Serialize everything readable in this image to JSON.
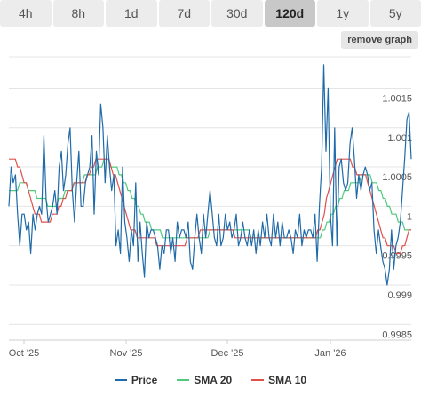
{
  "tabs": [
    {
      "label": "4h",
      "active": false
    },
    {
      "label": "8h",
      "active": false
    },
    {
      "label": "1d",
      "active": false
    },
    {
      "label": "7d",
      "active": false
    },
    {
      "label": "30d",
      "active": false
    },
    {
      "label": "120d",
      "active": true
    },
    {
      "label": "1y",
      "active": false
    },
    {
      "label": "5y",
      "active": false
    }
  ],
  "remove_graph_label": "remove graph",
  "colors": {
    "price": "#1f6aa8",
    "sma20": "#4fc97d",
    "sma10": "#e0504a",
    "grid": "#e4e4e4"
  },
  "chart_data": {
    "type": "line",
    "title": "",
    "xlabel": "",
    "ylabel": "",
    "x_ticks": [
      "Oct '25",
      "Nov '25",
      "Dec '25",
      "Jan '26"
    ],
    "y_ticks": [
      "0.9985",
      "0.999",
      "0.9995",
      "1",
      "1.0005",
      "1.001",
      "1.0015"
    ],
    "ylim": [
      0.9983,
      1.0019
    ],
    "grid": true,
    "legend_position": "bottom",
    "series": [
      {
        "name": "Price",
        "values": [
          1.0,
          1.0005,
          1.0003,
          1.0004,
          0.9999,
          0.9995,
          0.9999,
          0.9999,
          0.9997,
          0.9998,
          0.9994,
          0.9999,
          0.9997,
          0.9999,
          1.0,
          0.9999,
          1.0009,
          1.0001,
          0.9998,
          0.9999,
          1.0,
          1.0002,
          0.9999,
          1.0005,
          1.0007,
          1.0002,
          1.0004,
          1.0008,
          1.001,
          1.0002,
          0.9998,
          1.0003,
          1.0007,
          1.0,
          1.0,
          1.0003,
          1.0004,
          1.0005,
          1.0009,
          0.9999,
          1.0007,
          1.0004,
          1.0013,
          1.001,
          1.0003,
          1.0009,
          1.0005,
          1.0002,
          1.0004,
          0.9995,
          0.9997,
          0.9994,
          1.0005,
          0.9998,
          0.9996,
          0.9993,
          0.9997,
          0.9995,
          1.0003,
          0.9993,
          0.9998,
          0.9994,
          0.9991,
          0.9998,
          0.9996,
          0.9997,
          0.9997,
          0.9996,
          0.9995,
          0.9992,
          0.9995,
          0.9994,
          0.9997,
          0.9997,
          0.9994,
          0.9996,
          0.9993,
          0.9998,
          0.9996,
          0.9997,
          0.9997,
          0.9996,
          0.9998,
          0.9993,
          0.9992,
          0.9996,
          0.9999,
          0.9996,
          0.9994,
          0.9999,
          0.9996,
          0.9999,
          1.0002,
          0.9999,
          0.9996,
          0.9995,
          0.9999,
          0.9995,
          0.9996,
          0.9999,
          0.9997,
          0.9998,
          0.9996,
          0.9997,
          0.9999,
          0.9995,
          0.9996,
          0.9998,
          0.9996,
          0.9995,
          0.9997,
          0.9995,
          0.9997,
          0.9994,
          0.9997,
          0.9995,
          0.9998,
          0.9996,
          0.9999,
          0.9996,
          0.9995,
          0.9999,
          0.9996,
          0.9998,
          0.9995,
          0.9998,
          0.9996,
          0.9996,
          0.9997,
          0.9996,
          0.9994,
          0.9997,
          0.9996,
          0.9999,
          0.9995,
          0.9997,
          0.9996,
          0.9997,
          0.9997,
          0.9996,
          0.9999,
          0.9993,
          1.0,
          1.0005,
          1.0018,
          1.0007,
          1.0015,
          0.9999,
          0.9995,
          1.001,
          0.9995,
          1.0005,
          1.0006,
          1.0003,
          1.0002,
          1.0003,
          1.0008,
          1.001,
          1.0006,
          1.0001,
          1.0004,
          1.0002,
          1.0004,
          1.0005,
          1.0004,
          1.0002,
          1.0003,
          0.9997,
          0.9994,
          0.9997,
          0.9995,
          0.9993,
          0.9992,
          0.999,
          0.9992,
          0.9997,
          0.9992,
          0.9995,
          0.9996,
          0.9998,
          1.0002,
          1.0006,
          1.0011,
          1.0012,
          1.0006
        ]
      },
      {
        "name": "SMA 20",
        "values": [
          1.0002,
          1.0002,
          1.0002,
          1.0002,
          1.0002,
          1.0003,
          1.0003,
          1.0003,
          1.0003,
          1.0002,
          1.0002,
          1.0002,
          1.0002,
          1.0001,
          1.0001,
          1.0001,
          1.0001,
          1.0001,
          1.0,
          1.0,
          1.0,
          1.0,
          1.0,
          1.0001,
          1.0001,
          1.0001,
          1.0002,
          1.0002,
          1.0002,
          1.0002,
          1.0003,
          1.0003,
          1.0003,
          1.0003,
          1.0003,
          1.0004,
          1.0004,
          1.0004,
          1.0004,
          1.0004,
          1.0004,
          1.0005,
          1.0005,
          1.0005,
          1.0006,
          1.0006,
          1.0006,
          1.0005,
          1.0005,
          1.0005,
          1.0005,
          1.0004,
          1.0004,
          1.0003,
          1.0003,
          1.0002,
          1.0002,
          1.0001,
          1.0001,
          1.0,
          1.0,
          0.9999,
          0.9999,
          0.9998,
          0.9998,
          0.9998,
          0.9997,
          0.9997,
          0.9997,
          0.9997,
          0.9997,
          0.9996,
          0.9996,
          0.9996,
          0.9996,
          0.9996,
          0.9996,
          0.9996,
          0.9996,
          0.9996,
          0.9996,
          0.9996,
          0.9996,
          0.9996,
          0.9996,
          0.9996,
          0.9996,
          0.9996,
          0.9996,
          0.9996,
          0.9996,
          0.9996,
          0.9996,
          0.9997,
          0.9997,
          0.9997,
          0.9997,
          0.9997,
          0.9997,
          0.9997,
          0.9997,
          0.9997,
          0.9997,
          0.9997,
          0.9997,
          0.9997,
          0.9997,
          0.9997,
          0.9997,
          0.9997,
          0.9997,
          0.9997,
          0.9996,
          0.9996,
          0.9996,
          0.9996,
          0.9996,
          0.9996,
          0.9996,
          0.9996,
          0.9996,
          0.9996,
          0.9996,
          0.9996,
          0.9996,
          0.9996,
          0.9996,
          0.9996,
          0.9996,
          0.9996,
          0.9996,
          0.9996,
          0.9996,
          0.9996,
          0.9996,
          0.9996,
          0.9996,
          0.9996,
          0.9996,
          0.9996,
          0.9996,
          0.9996,
          0.9996,
          0.9996,
          0.9996,
          0.9997,
          0.9997,
          0.9998,
          0.9998,
          0.9999,
          0.9999,
          1.0,
          1.0,
          1.0001,
          1.0001,
          1.0002,
          1.0002,
          1.0002,
          1.0003,
          1.0003,
          1.0003,
          1.0003,
          1.0003,
          1.0004,
          1.0004,
          1.0004,
          1.0004,
          1.0004,
          1.0003,
          1.0003,
          1.0003,
          1.0002,
          1.0002,
          1.0001,
          1.0001,
          1.0,
          1.0,
          0.9999,
          0.9999,
          0.9999,
          0.9998,
          0.9998,
          0.9998,
          0.9997,
          0.9997,
          0.9997,
          0.9997
        ]
      },
      {
        "name": "SMA 10",
        "values": [
          1.0006,
          1.0006,
          1.0006,
          1.0006,
          1.0005,
          1.0005,
          1.0004,
          1.0003,
          1.0003,
          1.0002,
          1.0001,
          1.0,
          0.9999,
          0.9999,
          0.9999,
          0.9998,
          0.9998,
          0.9998,
          0.9998,
          0.9998,
          0.9999,
          0.9999,
          0.9999,
          1.0,
          1.0,
          1.0001,
          1.0001,
          1.0002,
          1.0002,
          1.0002,
          1.0003,
          1.0003,
          1.0003,
          1.0003,
          1.0003,
          1.0003,
          1.0004,
          1.0004,
          1.0005,
          1.0005,
          1.0006,
          1.0006,
          1.0006,
          1.0006,
          1.0006,
          1.0006,
          1.0006,
          1.0005,
          1.0004,
          1.0004,
          1.0003,
          1.0002,
          1.0001,
          1.0,
          0.9999,
          0.9998,
          0.9997,
          0.9997,
          0.9997,
          0.9996,
          0.9996,
          0.9996,
          0.9996,
          0.9996,
          0.9996,
          0.9996,
          0.9996,
          0.9996,
          0.9995,
          0.9995,
          0.9995,
          0.9995,
          0.9995,
          0.9995,
          0.9995,
          0.9995,
          0.9995,
          0.9995,
          0.9995,
          0.9995,
          0.9995,
          0.9995,
          0.9996,
          0.9996,
          0.9996,
          0.9996,
          0.9996,
          0.9996,
          0.9997,
          0.9997,
          0.9997,
          0.9997,
          0.9997,
          0.9997,
          0.9997,
          0.9997,
          0.9997,
          0.9997,
          0.9997,
          0.9997,
          0.9997,
          0.9997,
          0.9997,
          0.9997,
          0.9996,
          0.9996,
          0.9996,
          0.9996,
          0.9996,
          0.9996,
          0.9996,
          0.9996,
          0.9996,
          0.9996,
          0.9996,
          0.9996,
          0.9996,
          0.9996,
          0.9996,
          0.9996,
          0.9996,
          0.9996,
          0.9996,
          0.9996,
          0.9996,
          0.9996,
          0.9996,
          0.9996,
          0.9996,
          0.9996,
          0.9996,
          0.9996,
          0.9996,
          0.9996,
          0.9996,
          0.9996,
          0.9996,
          0.9996,
          0.9996,
          0.9996,
          0.9996,
          0.9996,
          0.9997,
          0.9997,
          0.9998,
          0.9999,
          1.0001,
          1.0002,
          1.0003,
          1.0004,
          1.0005,
          1.0006,
          1.0006,
          1.0006,
          1.0006,
          1.0006,
          1.0006,
          1.0006,
          1.0005,
          1.0005,
          1.0004,
          1.0004,
          1.0004,
          1.0004,
          1.0004,
          1.0003,
          1.0002,
          1.0001,
          1.0,
          0.9999,
          0.9998,
          0.9997,
          0.9996,
          0.9996,
          0.9995,
          0.9995,
          0.9995,
          0.9995,
          0.9994,
          0.9994,
          0.9994,
          0.9995,
          0.9995,
          0.9996,
          0.9997,
          0.9997
        ]
      }
    ]
  }
}
